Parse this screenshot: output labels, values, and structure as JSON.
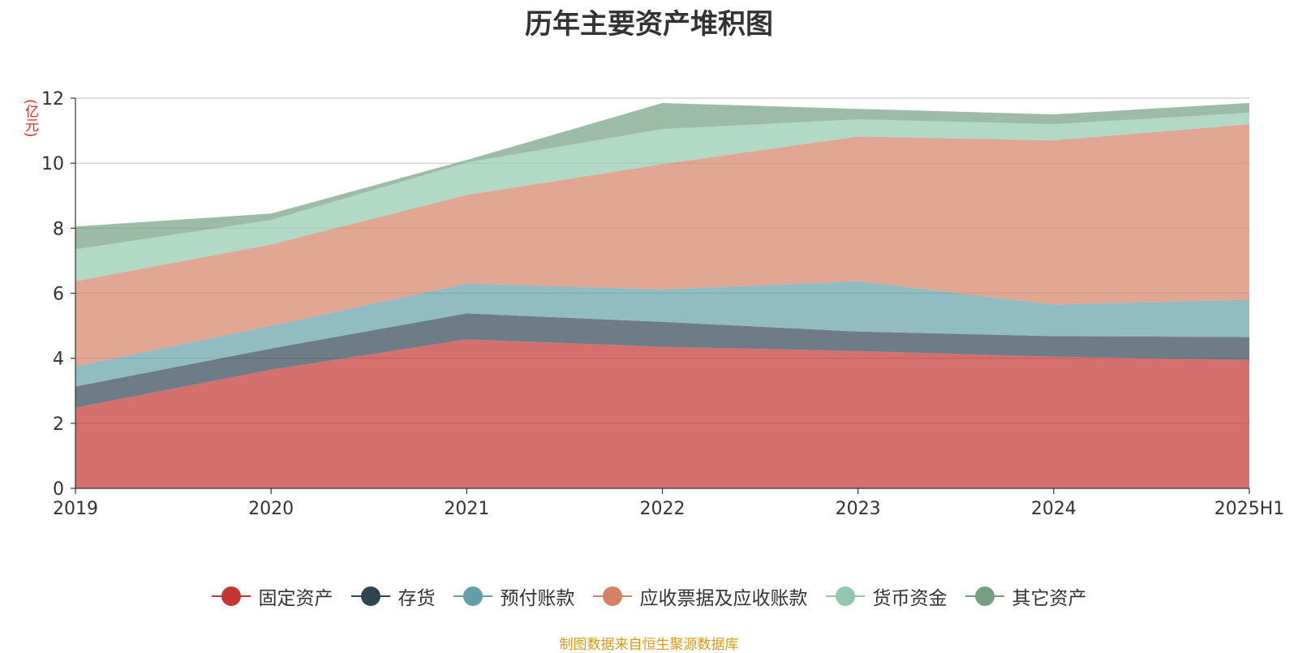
{
  "title": "历年主要资产堆积图",
  "unit_label": "(亿元)",
  "source": "制图数据来自恒生聚源数据库",
  "chart_data": {
    "type": "area",
    "stacked": true,
    "title": "历年主要资产堆积图",
    "ylabel": "(亿元)",
    "ylim": [
      0,
      12
    ],
    "yticks": [
      "0",
      "2",
      "4",
      "6",
      "8",
      "10",
      "12"
    ],
    "categories": [
      "2019",
      "2020",
      "2021",
      "2022",
      "2023",
      "2024",
      "2025H1"
    ],
    "legend_position": "bottom",
    "series": [
      {
        "name": "固定资产",
        "color": "#c23531",
        "values": [
          2.48,
          3.65,
          4.58,
          4.35,
          4.22,
          4.05,
          3.95
        ]
      },
      {
        "name": "存货",
        "color": "#2f4554",
        "values": [
          0.65,
          0.65,
          0.8,
          0.77,
          0.6,
          0.63,
          0.7
        ]
      },
      {
        "name": "预付账款",
        "color": "#61a0a8",
        "values": [
          0.62,
          0.7,
          0.92,
          1.0,
          1.55,
          0.97,
          1.15
        ]
      },
      {
        "name": "应收票据及应收账款",
        "color": "#d48265",
        "values": [
          2.62,
          2.5,
          2.72,
          3.85,
          4.45,
          5.05,
          5.4
        ]
      },
      {
        "name": "货币资金",
        "color": "#91c7ae",
        "values": [
          0.98,
          0.75,
          1.0,
          1.08,
          0.53,
          0.5,
          0.35
        ]
      },
      {
        "name": "其它资产",
        "color": "#749f83",
        "values": [
          0.7,
          0.2,
          0.08,
          0.8,
          0.32,
          0.3,
          0.3
        ]
      }
    ]
  }
}
